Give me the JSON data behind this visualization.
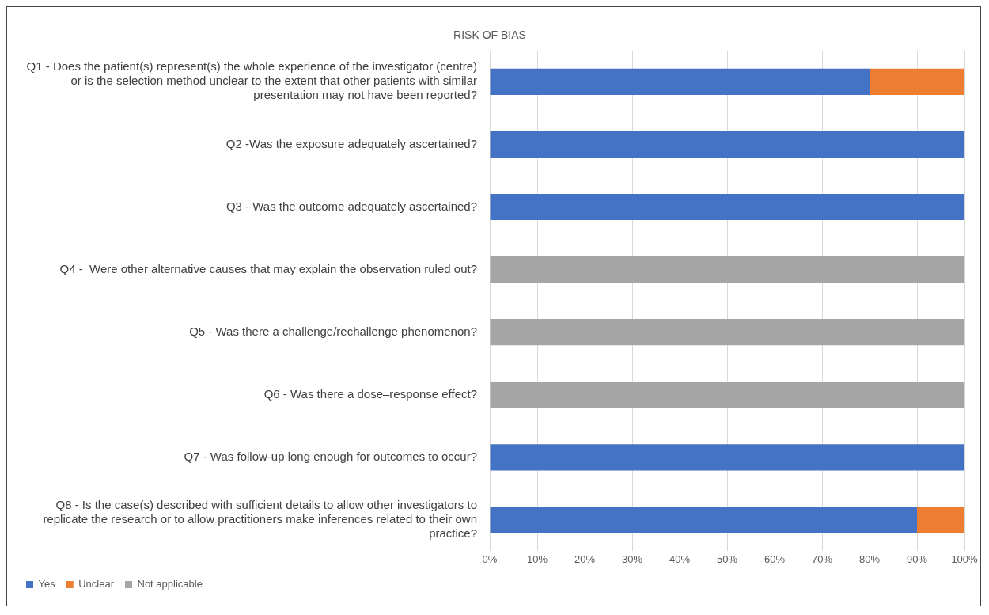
{
  "chart_data": {
    "type": "bar",
    "orientation": "horizontal",
    "stacked": true,
    "title": "RISK OF BIAS",
    "categories": [
      "Q1 - Does the patient(s) represent(s) the whole experience of the investigator (centre) or is the selection method unclear to the extent that other patients with similar presentation may not have been reported?",
      "Q2 -Was the exposure adequately ascertained?",
      "Q3 - Was the outcome adequately ascertained?",
      "Q4 -  Were other alternative causes that may explain the observation ruled out?",
      "Q5 - Was there a challenge/rechallenge phenomenon?",
      "Q6 - Was there a dose–response effect?",
      "Q7 - Was follow-up long enough for outcomes to occur?",
      "Q8 - Is the case(s) described with sufficient details to allow other investigators to replicate the research or to allow practitioners make inferences related to their own practice?"
    ],
    "series": [
      {
        "name": "Yes",
        "color": "#4472c4",
        "values": [
          80,
          100,
          100,
          0,
          0,
          0,
          100,
          90
        ]
      },
      {
        "name": "Unclear",
        "color": "#ed7d31",
        "values": [
          20,
          0,
          0,
          0,
          0,
          0,
          0,
          10
        ]
      },
      {
        "name": "Not applicable",
        "color": "#a5a5a5",
        "values": [
          0,
          0,
          0,
          100,
          100,
          100,
          0,
          0
        ]
      }
    ],
    "xlim": [
      0,
      100
    ],
    "xticks": [
      {
        "value": 0,
        "label": "0%"
      },
      {
        "value": 10,
        "label": "10%"
      },
      {
        "value": 20,
        "label": "20%"
      },
      {
        "value": 30,
        "label": "30%"
      },
      {
        "value": 40,
        "label": "40%"
      },
      {
        "value": 50,
        "label": "50%"
      },
      {
        "value": 60,
        "label": "60%"
      },
      {
        "value": 70,
        "label": "70%"
      },
      {
        "value": 80,
        "label": "80%"
      },
      {
        "value": 90,
        "label": "90%"
      },
      {
        "value": 100,
        "label": "100%"
      }
    ],
    "grid": "x",
    "legend": "bottom"
  }
}
